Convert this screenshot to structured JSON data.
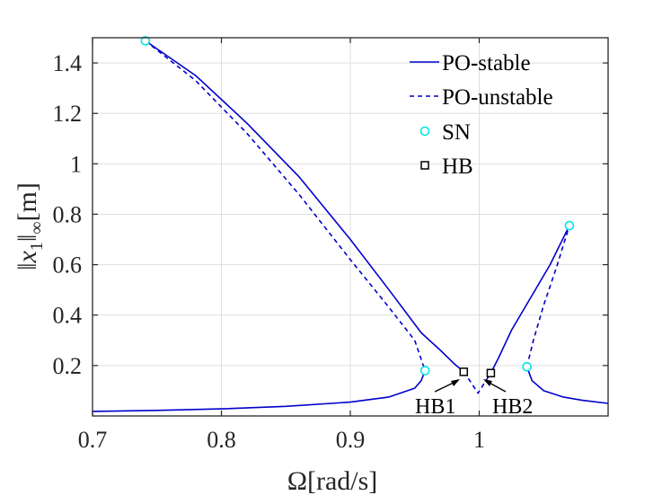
{
  "chart_data": {
    "type": "line",
    "xlabel": "Ω[rad/s]",
    "ylabel_parts": {
      "outer_open": "‖",
      "var": "x",
      "sub": "1",
      "outer_close": "‖",
      "inf": "∞",
      "unit": "[m]"
    },
    "xlim": [
      0.7,
      1.1
    ],
    "ylim": [
      0.0,
      1.5
    ],
    "xticks": [
      0.7,
      0.8,
      0.9,
      1.0
    ],
    "xtick_labels": [
      "0.7",
      "0.8",
      "0.9",
      "1"
    ],
    "yticks": [
      0.2,
      0.4,
      0.6,
      0.8,
      1.0,
      1.2,
      1.4
    ],
    "ytick_labels": [
      "0.2",
      "0.4",
      "0.6",
      "0.8",
      "1",
      "1.2",
      "1.4"
    ],
    "grid": true,
    "legend": {
      "position": "top-right",
      "entries": [
        {
          "label": "PO-stable",
          "style": "solid-line"
        },
        {
          "label": "PO-unstable",
          "style": "dashed-line"
        },
        {
          "label": "SN",
          "style": "cyan-circle"
        },
        {
          "label": "HB",
          "style": "black-square"
        }
      ]
    },
    "series": [
      {
        "name": "PO-stable",
        "style": "solid",
        "segments": [
          [
            [
              0.7,
              0.018
            ],
            [
              0.75,
              0.022
            ],
            [
              0.8,
              0.028
            ],
            [
              0.85,
              0.038
            ],
            [
              0.9,
              0.055
            ],
            [
              0.93,
              0.075
            ],
            [
              0.95,
              0.11
            ],
            [
              0.955,
              0.14
            ],
            [
              0.958,
              0.18
            ]
          ],
          [
            [
              0.741,
              1.488
            ],
            [
              0.78,
              1.35
            ],
            [
              0.82,
              1.16
            ],
            [
              0.86,
              0.95
            ],
            [
              0.9,
              0.7
            ],
            [
              0.93,
              0.5
            ],
            [
              0.955,
              0.33
            ],
            [
              0.97,
              0.26
            ],
            [
              0.98,
              0.21
            ],
            [
              0.988,
              0.175
            ]
          ],
          [
            [
              1.009,
              0.17
            ],
            [
              1.015,
              0.23
            ],
            [
              1.025,
              0.34
            ],
            [
              1.04,
              0.47
            ],
            [
              1.055,
              0.6
            ],
            [
              1.07,
              0.755
            ]
          ],
          [
            [
              1.037,
              0.195
            ],
            [
              1.041,
              0.14
            ],
            [
              1.05,
              0.1
            ],
            [
              1.065,
              0.075
            ],
            [
              1.08,
              0.062
            ],
            [
              1.1,
              0.05
            ]
          ]
        ]
      },
      {
        "name": "PO-unstable",
        "style": "dashed",
        "segments": [
          [
            [
              0.741,
              1.488
            ],
            [
              0.78,
              1.33
            ],
            [
              0.82,
              1.12
            ],
            [
              0.86,
              0.88
            ],
            [
              0.9,
              0.62
            ],
            [
              0.93,
              0.43
            ],
            [
              0.95,
              0.3
            ],
            [
              0.958,
              0.18
            ]
          ],
          [
            [
              0.988,
              0.175
            ],
            [
              0.994,
              0.13
            ],
            [
              0.999,
              0.09
            ],
            [
              1.004,
              0.13
            ],
            [
              1.009,
              0.17
            ]
          ],
          [
            [
              1.037,
              0.195
            ],
            [
              1.042,
              0.3
            ],
            [
              1.05,
              0.44
            ],
            [
              1.06,
              0.59
            ],
            [
              1.07,
              0.755
            ]
          ]
        ]
      }
    ],
    "sn_points": [
      [
        0.741,
        1.488
      ],
      [
        0.958,
        0.18
      ],
      [
        1.037,
        0.195
      ],
      [
        1.07,
        0.755
      ]
    ],
    "hb_points": [
      [
        0.988,
        0.175
      ],
      [
        1.009,
        0.17
      ]
    ],
    "annotations": [
      {
        "text": "HB1",
        "target": [
          0.988,
          0.175
        ]
      },
      {
        "text": "HB2",
        "target": [
          1.009,
          0.17
        ]
      }
    ]
  },
  "colors": {
    "line": "#0000cc",
    "sn": "#00e5e5",
    "hb": "#000000",
    "grid": "#dedede",
    "axis": "#262626"
  }
}
